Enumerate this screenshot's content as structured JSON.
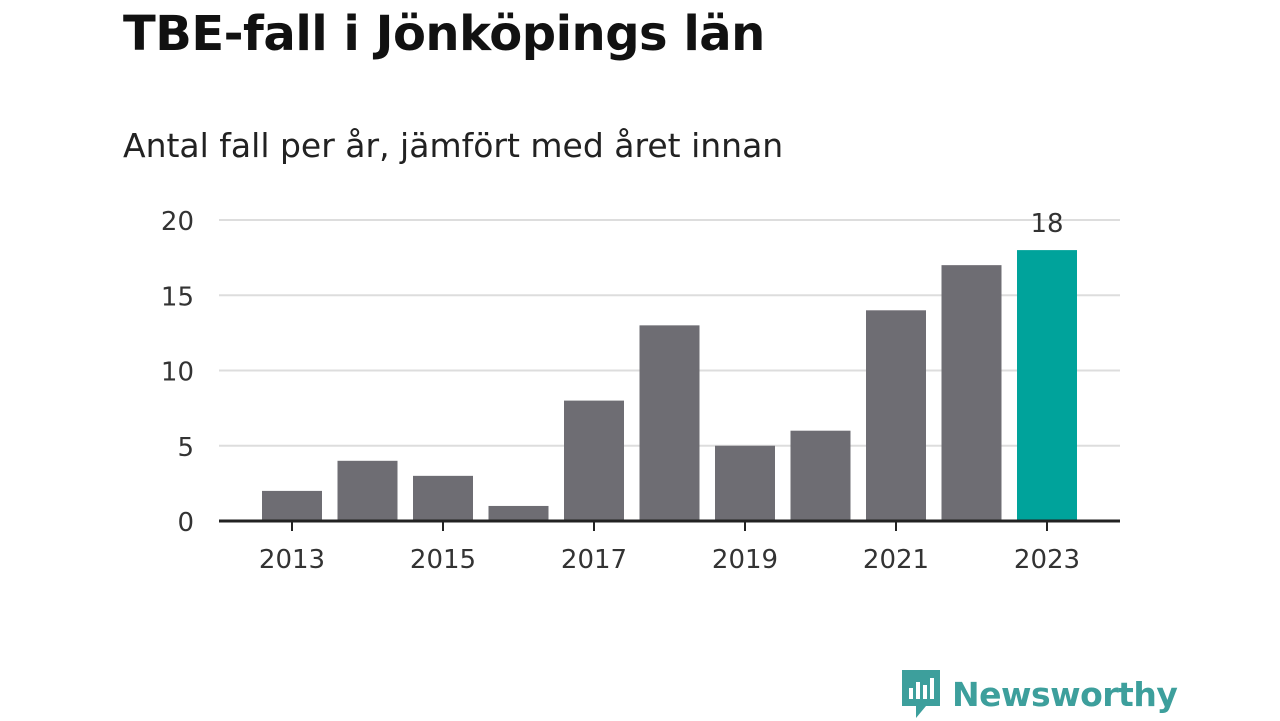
{
  "title": "TBE-fall i Jönköpings län",
  "subtitle": "Antal fall per år, jämfört med året innan",
  "brand": {
    "name": "Newsworthy",
    "color": "#3d9f9c"
  },
  "colors": {
    "bar": "#6e6d73",
    "highlight": "#00a39b",
    "grid": "#dddddd",
    "axis": "#222222"
  },
  "chart_data": {
    "type": "bar",
    "x": [
      2013,
      2014,
      2015,
      2016,
      2017,
      2018,
      2019,
      2020,
      2021,
      2022,
      2023
    ],
    "values": [
      2,
      4,
      3,
      1,
      8,
      13,
      5,
      6,
      14,
      17,
      18
    ],
    "x_tick_labels": [
      "2013",
      "2015",
      "2017",
      "2019",
      "2021",
      "2023"
    ],
    "y_ticks": [
      0,
      5,
      10,
      15,
      20
    ],
    "ylim": [
      0,
      20
    ],
    "highlight_index": 10,
    "data_labels": [
      {
        "index": 10,
        "text": "18"
      }
    ],
    "grid": true,
    "xlabel": "",
    "ylabel": ""
  }
}
